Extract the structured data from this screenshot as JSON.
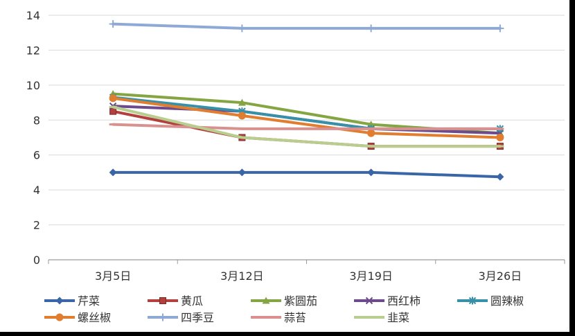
{
  "chart_data": {
    "type": "line",
    "categories": [
      "3月5日",
      "3月12日",
      "3月19日",
      "3月26日"
    ],
    "ylim": [
      0,
      14
    ],
    "yticks": [
      0,
      2,
      4,
      6,
      8,
      10,
      12,
      14
    ],
    "grid": true,
    "legend_position": "bottom",
    "series": [
      {
        "name": "芹菜",
        "values": [
          5,
          5,
          5,
          4.75
        ],
        "color": "#3A66A8",
        "marker": "diamond"
      },
      {
        "name": "黄瓜",
        "values": [
          8.5,
          7,
          6.5,
          6.5
        ],
        "color": "#B3403C",
        "marker": "square"
      },
      {
        "name": "紫圆茄",
        "values": [
          9.5,
          9,
          7.75,
          7.25
        ],
        "color": "#84A541",
        "marker": "triangle"
      },
      {
        "name": "西红柿",
        "values": [
          8.8,
          8.5,
          7.5,
          7.25
        ],
        "color": "#6C4A8C",
        "marker": "x"
      },
      {
        "name": "圆辣椒",
        "values": [
          9.3,
          8.5,
          7.5,
          7.5
        ],
        "color": "#3690A8",
        "marker": "star"
      },
      {
        "name": "螺丝椒",
        "values": [
          9.25,
          8.25,
          7.25,
          7
        ],
        "color": "#E07D2E",
        "marker": "circle"
      },
      {
        "name": "四季豆",
        "values": [
          13.5,
          13.25,
          13.25,
          13.25
        ],
        "color": "#8EA9D6",
        "marker": "plus"
      },
      {
        "name": "蒜苔",
        "values": [
          7.75,
          7.5,
          7.5,
          7.5
        ],
        "color": "#D8918F",
        "marker": "dash"
      },
      {
        "name": "韭菜",
        "values": [
          8.75,
          7,
          6.5,
          6.5
        ],
        "color": "#B8CE8E",
        "marker": "dash"
      }
    ]
  }
}
